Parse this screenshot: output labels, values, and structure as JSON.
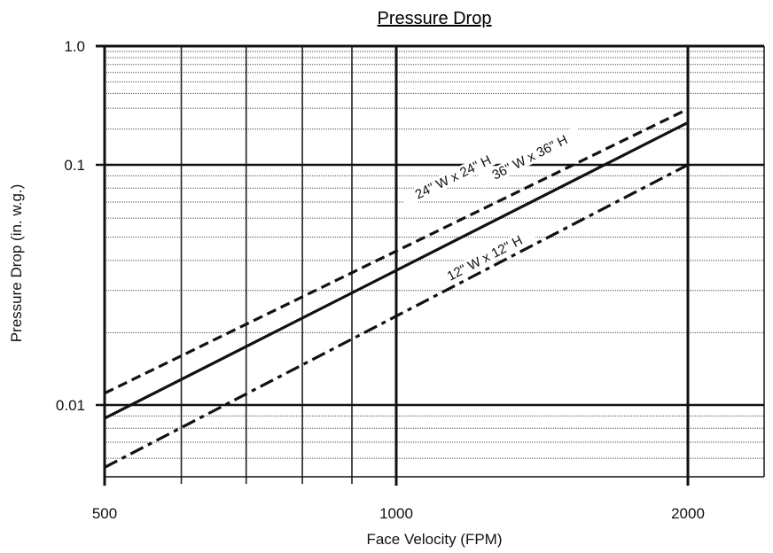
{
  "chart_data": {
    "type": "line",
    "title": "Pressure Drop",
    "xlabel": "Face Velocity (FPM)",
    "ylabel": "Pressure Drop (in. w.g.)",
    "x_scale": "log",
    "y_scale": "log",
    "xlim": [
      500,
      2000
    ],
    "ylim": [
      0.005,
      1.0
    ],
    "x_ticks": [
      {
        "value": 500,
        "label": "500"
      },
      {
        "value": 1000,
        "label": "1000"
      },
      {
        "value": 2000,
        "label": "2000"
      }
    ],
    "y_ticks": [
      {
        "value": 0.01,
        "label": "0.01"
      },
      {
        "value": 0.1,
        "label": "0.1"
      },
      {
        "value": 1.0,
        "label": "1.0"
      }
    ],
    "grid": true,
    "series": [
      {
        "name": "24\" W x 24\" H",
        "style": "dashed",
        "x": [
          500,
          2000
        ],
        "y": [
          0.0112,
          0.295
        ]
      },
      {
        "name": "36\" W x 36\" H",
        "style": "solid",
        "x": [
          500,
          2000
        ],
        "y": [
          0.0088,
          0.227
        ]
      },
      {
        "name": "12\" W x 12\" H",
        "style": "dash-dot",
        "x": [
          500,
          2000
        ],
        "y": [
          0.0055,
          0.1
        ]
      }
    ]
  }
}
